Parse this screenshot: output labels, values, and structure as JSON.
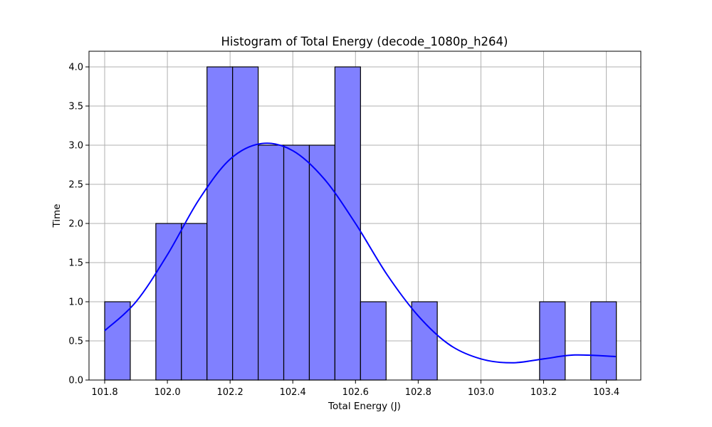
{
  "chart_data": {
    "type": "bar",
    "title": "Histogram of Total Energy (decode_1080p_h264)",
    "xlabel": "Total Energy (J)",
    "ylabel": "Time",
    "xlim": [
      101.75,
      103.51
    ],
    "ylim": [
      0,
      4.2
    ],
    "xticks": [
      "101.8",
      "102.0",
      "102.2",
      "102.4",
      "102.6",
      "102.8",
      "103.0",
      "103.2",
      "103.4"
    ],
    "xtick_values": [
      101.8,
      102.0,
      102.2,
      102.4,
      102.6,
      102.8,
      103.0,
      103.2,
      103.4
    ],
    "yticks": [
      "0.0",
      "0.5",
      "1.0",
      "1.5",
      "2.0",
      "2.5",
      "3.0",
      "3.5",
      "4.0"
    ],
    "ytick_values": [
      0,
      0.5,
      1.0,
      1.5,
      2.0,
      2.5,
      3.0,
      3.5,
      4.0
    ],
    "grid": true,
    "bin_start": 101.8,
    "bin_width": 0.0816,
    "counts": [
      1,
      0,
      2,
      2,
      4,
      4,
      3,
      3,
      3,
      4,
      1,
      0,
      1,
      0,
      0,
      0,
      0,
      1,
      0,
      1
    ],
    "kde": {
      "x": [
        101.8,
        101.9,
        102.0,
        102.1,
        102.2,
        102.3,
        102.4,
        102.5,
        102.6,
        102.7,
        102.8,
        102.9,
        103.0,
        103.1,
        103.2,
        103.3,
        103.43
      ],
      "y": [
        0.63,
        1.0,
        1.6,
        2.3,
        2.82,
        3.02,
        2.93,
        2.57,
        2.0,
        1.35,
        0.82,
        0.45,
        0.27,
        0.22,
        0.27,
        0.32,
        0.3
      ]
    },
    "colors": {
      "bar_fill": "#8080ff",
      "bar_edge": "#000000",
      "kde_line": "#0000ff",
      "grid": "#b0b0b0"
    }
  }
}
